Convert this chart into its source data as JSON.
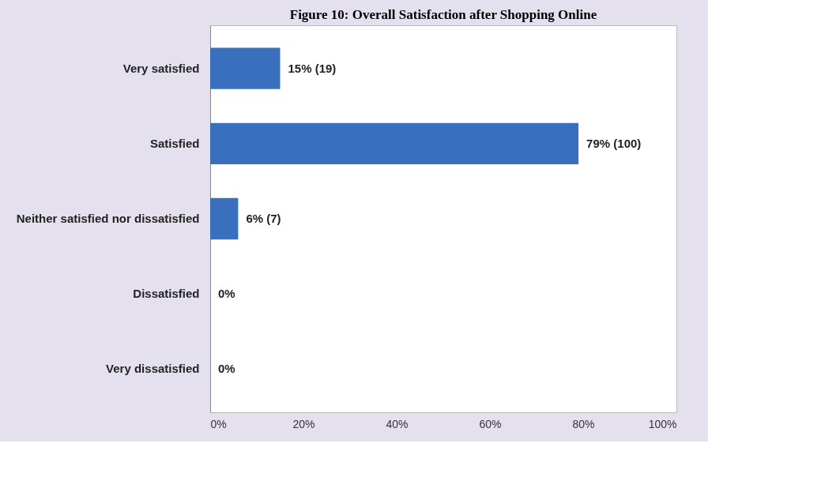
{
  "chart_data": {
    "type": "bar",
    "orientation": "horizontal",
    "title": "Figure 10: Overall Satisfaction after Shopping Online",
    "categories": [
      "Very satisfied",
      "Satisfied",
      "Neither satisfied nor dissatisfied",
      "Dissatisfied",
      "Very dissatisfied"
    ],
    "values": [
      15,
      79,
      6,
      0,
      0
    ],
    "value_labels": [
      "15% (19)",
      "79% (100)",
      "6% (7)",
      "0%",
      "0%"
    ],
    "color": "#3a6fbd",
    "xlim": [
      0,
      100
    ],
    "xticks": [
      {
        "value": 0,
        "label": "0%"
      },
      {
        "value": 20,
        "label": "20%"
      },
      {
        "value": 40,
        "label": "40%"
      },
      {
        "value": 60,
        "label": "60%"
      },
      {
        "value": 80,
        "label": "80%"
      },
      {
        "value": 100,
        "label": "100%"
      }
    ],
    "grid": false
  }
}
